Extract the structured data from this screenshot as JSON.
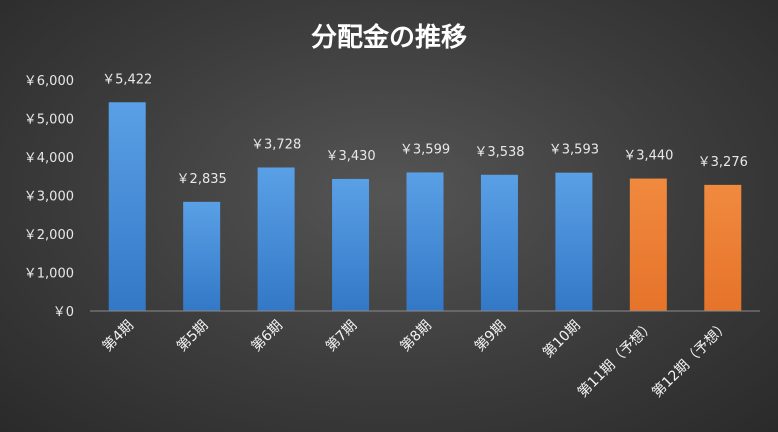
{
  "chart_data": {
    "type": "bar",
    "title": "分配金の推移",
    "categories": [
      "第4期",
      "第5期",
      "第6期",
      "第7期",
      "第8期",
      "第9期",
      "第10期",
      "第11期（予想）",
      "第12期（予想）"
    ],
    "values": [
      5422,
      2835,
      3728,
      3430,
      3599,
      3538,
      3593,
      3440,
      3276
    ],
    "data_labels": [
      "￥5,422",
      "￥2,835",
      "￥3,728",
      "￥3,430",
      "￥3,599",
      "￥3,538",
      "￥3,593",
      "￥3,440",
      "￥3,276"
    ],
    "forecast": [
      false,
      false,
      false,
      false,
      false,
      false,
      false,
      true,
      true
    ],
    "ylim": [
      0,
      6000
    ],
    "yticks": [
      0,
      1000,
      2000,
      3000,
      4000,
      5000,
      6000
    ],
    "ytick_labels": [
      "￥0",
      "￥1,000",
      "￥2,000",
      "￥3,000",
      "￥4,000",
      "￥5,000",
      "￥6,000"
    ],
    "xlabel": "",
    "ylabel": "",
    "grid": false,
    "legend": "none",
    "colors": {
      "actual": "#4a90d9",
      "actual_dark": "#2f72c0",
      "forecast": "#ed7d31",
      "text": "#e8e8e8",
      "axis": "#8a8a8a"
    }
  }
}
